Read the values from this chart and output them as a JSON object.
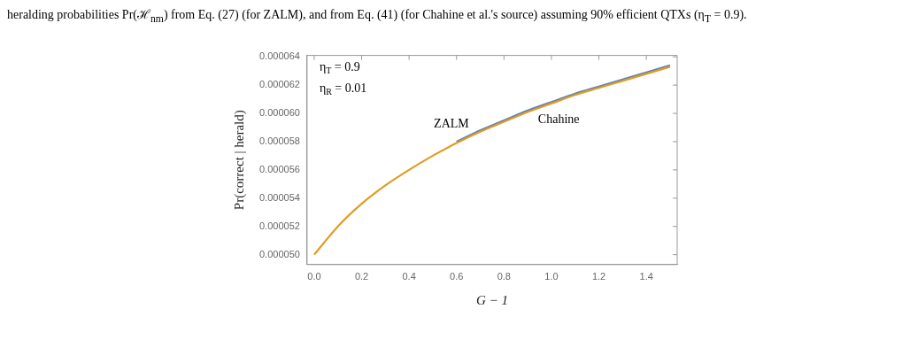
{
  "chart_data": {
    "type": "line",
    "title": "heralding probabilities Pr(ℋ$_{nm}$) from Eq. (27) (for ZALM), and from Eq. (41) (for Chahine et al.'s source) assuming 90% efficient QTXs (η$_{T}$ = 0.9).",
    "xlabel": "G − 1",
    "ylabel": "Pr(correct | herald)",
    "x": [
      0,
      0.1,
      0.2,
      0.3,
      0.4,
      0.5,
      0.6,
      0.7,
      0.8,
      0.9,
      1.0,
      1.1,
      1.2,
      1.3,
      1.4,
      1.5
    ],
    "series": [
      {
        "color": "#5e81b5",
        "values": [
          null,
          null,
          null,
          null,
          null,
          null,
          5.8e-05,
          5.88e-05,
          5.95e-05,
          6.02e-05,
          6.08e-05,
          6.14e-05,
          6.19e-05,
          6.24e-05,
          6.29e-05,
          6.34e-05
        ]
      },
      {
        "color": "#e19c24",
        "values": [
          5e-05,
          5.2e-05,
          5.36e-05,
          5.49e-05,
          5.6e-05,
          5.7e-05,
          5.79e-05,
          5.87e-05,
          5.94e-05,
          6.01e-05,
          6.07e-05,
          6.13e-05,
          6.18e-05,
          6.23e-05,
          6.28e-05,
          6.33e-05
        ]
      }
    ],
    "xlim": [
      -0.03,
      1.53
    ],
    "ylim": [
      4.93e-05,
      6.41e-05
    ],
    "xticks": [
      {
        "value": 0,
        "label": "0.0"
      },
      {
        "value": 0.2,
        "label": "0.2"
      },
      {
        "value": 0.4,
        "label": "0.4"
      },
      {
        "value": 0.6,
        "label": "0.6"
      },
      {
        "value": 0.8,
        "label": "0.8"
      },
      {
        "value": 1.0,
        "label": "1.0"
      },
      {
        "value": 1.2,
        "label": "1.2"
      },
      {
        "value": 1.4,
        "label": "1.4"
      }
    ],
    "yticks": [
      {
        "value": 5e-05,
        "label": "0.000050"
      },
      {
        "value": 5.2e-05,
        "label": "0.000052"
      },
      {
        "value": 5.4e-05,
        "label": "0.000054"
      },
      {
        "value": 5.6e-05,
        "label": "0.000056"
      },
      {
        "value": 5.8e-05,
        "label": "0.000058"
      },
      {
        "value": 6e-05,
        "label": "0.000060"
      },
      {
        "value": 6.2e-05,
        "label": "0.000062"
      },
      {
        "value": 6.4e-05,
        "label": "0.000064"
      }
    ],
    "annotations": [
      "η$_{T}$ = 0.9",
      "η$_{R}$ = 0.01",
      "ZALM",
      "Chahine"
    ],
    "grid": false,
    "legend": false,
    "marker": "none",
    "line_style": "solid"
  }
}
